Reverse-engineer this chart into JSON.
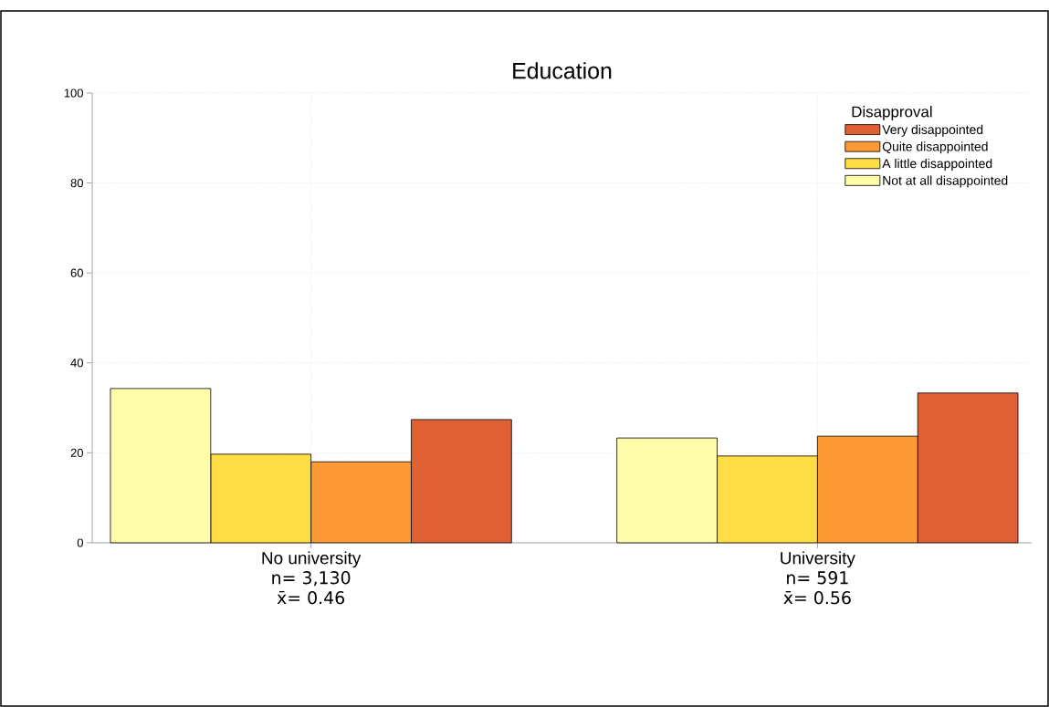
{
  "chart_data": {
    "type": "bar",
    "title": "Education",
    "categories": [
      "No university",
      "University"
    ],
    "series": [
      {
        "name": "Not at all disappointed",
        "color": "#fffcaa",
        "values": [
          34.3,
          23.3
        ]
      },
      {
        "name": "A little disappointed",
        "color": "#ffdd44",
        "values": [
          19.7,
          19.3
        ]
      },
      {
        "name": "Quite disappointed",
        "color": "#fe9a35",
        "values": [
          18.0,
          23.7
        ]
      },
      {
        "name": "Very disappointed",
        "color": "#de6033",
        "values": [
          27.4,
          33.3
        ]
      }
    ],
    "legend_title": "Disapproval",
    "legend": "top right",
    "annotations": [
      "n= 3,130",
      "x̄= 0.46",
      "n= 591",
      "x̄= 0.56"
    ],
    "ylim": [
      0,
      100
    ],
    "yticks": [
      0,
      20,
      40,
      60,
      80,
      100
    ],
    "grid": true
  }
}
